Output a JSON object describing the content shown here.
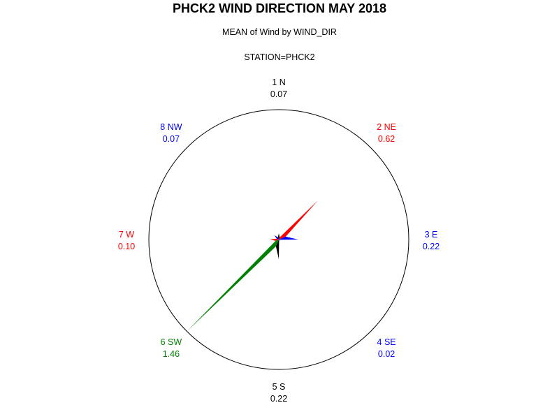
{
  "chart_data": {
    "type": "star",
    "title": "PHCK2 WIND DIRECTION MAY 2018",
    "subtitle": "MEAN of Wind by WIND_DIR",
    "byline": "STATION=PHCK2",
    "categories": [
      "1 N",
      "2 NE",
      "3 E",
      "4 SE",
      "5 S",
      "6 SW",
      "7 W",
      "8 NW"
    ],
    "values": [
      0.07,
      0.62,
      0.22,
      0.02,
      0.22,
      1.46,
      0.1,
      0.07
    ],
    "value_labels": [
      "0.07",
      "0.62",
      "0.22",
      "0.02",
      "0.22",
      "1.46",
      "0.10",
      "0.07"
    ],
    "colors": [
      "#000000",
      "#ff0000",
      "#0000ff",
      "#0000ff",
      "#000000",
      "#008000",
      "#ff0000",
      "#0000ff"
    ],
    "rmax": 1.46,
    "grid": false
  }
}
